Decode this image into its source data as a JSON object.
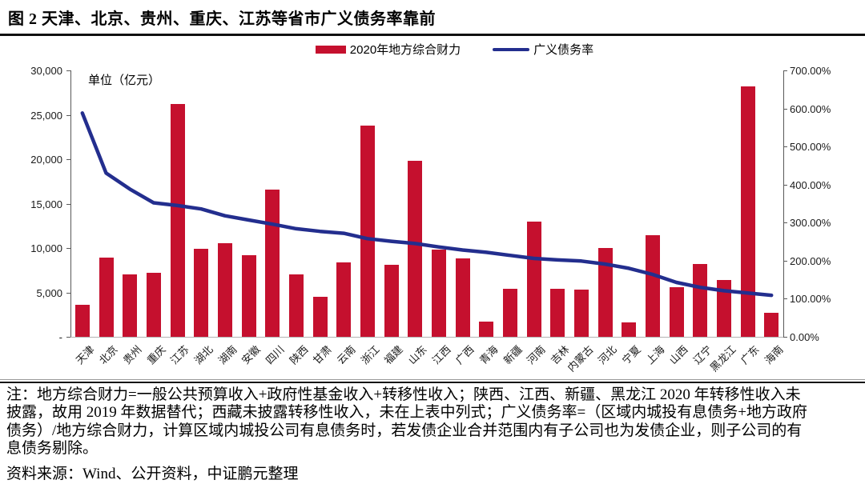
{
  "title": "图 2  天津、北京、贵州、重庆、江苏等省市广义债务率靠前",
  "legend": {
    "bar_label": "2020年地方综合财力",
    "line_label": "广义债务率"
  },
  "unit_label": "单位（亿元）",
  "colors": {
    "bar": "#C5102E",
    "line": "#232E8E",
    "axis": "#595959",
    "x_axis": "#b3b3b3",
    "text": "#000000"
  },
  "chart_data": {
    "type": "bar",
    "subtype": "bar+line combo, dual axis",
    "title": "图 2 天津、北京、贵州、重庆、江苏等省市广义债务率靠前",
    "categories": [
      "天津",
      "北京",
      "贵州",
      "重庆",
      "江苏",
      "湖北",
      "湖南",
      "安徽",
      "四川",
      "陕西",
      "甘肃",
      "云南",
      "浙江",
      "福建",
      "山东",
      "江西",
      "广西",
      "青海",
      "新疆",
      "河南",
      "吉林",
      "内蒙古",
      "河北",
      "宁夏",
      "上海",
      "山西",
      "辽宁",
      "黑龙江",
      "广东",
      "海南"
    ],
    "series": [
      {
        "name": "2020年地方综合财力",
        "type": "bar",
        "axis": "left",
        "unit": "亿元",
        "values": [
          3600,
          8900,
          7000,
          7200,
          26200,
          9900,
          10500,
          9200,
          16600,
          7000,
          4500,
          8400,
          23800,
          8100,
          19800,
          9800,
          8800,
          1700,
          5400,
          13000,
          5400,
          5300,
          10000,
          1600,
          11400,
          5600,
          8200,
          6400,
          28200,
          2700
        ]
      },
      {
        "name": "广义债务率",
        "type": "line",
        "axis": "right",
        "unit": "%",
        "values": [
          588,
          430,
          388,
          352,
          345,
          336,
          318,
          307,
          296,
          284,
          277,
          272,
          258,
          251,
          245,
          236,
          228,
          222,
          214,
          206,
          202,
          199,
          191,
          180,
          164,
          143,
          130,
          121,
          115,
          109
        ]
      }
    ],
    "left_axis": {
      "ticks": [
        "30,000",
        "25,000",
        "20,000",
        "15,000",
        "10,000",
        "5,000",
        "-"
      ],
      "max": 30000,
      "min": 0,
      "label": "单位（亿元）"
    },
    "right_axis": {
      "ticks": [
        "700.00%",
        "600.00%",
        "500.00%",
        "400.00%",
        "300.00%",
        "200.00%",
        "100.00%",
        "0.00%"
      ],
      "max": 700,
      "min": 0
    },
    "grid": false,
    "legend_position": "top"
  },
  "notes": {
    "lines": [
      "注：地方综合财力=一般公共预算收入+政府性基金收入+转移性收入；陕西、江西、新疆、黑龙江 2020 年转移性收入未",
      "披露，故用 2019 年数据替代；西藏未披露转移性收入，未在上表中列式；广义债务率=（区域内城投有息债务+地方政府",
      "债务）/地方综合财力，计算区域内城投公司有息债务时，若发债企业合并范围内有子公司也为发债企业，则子公司的有",
      "息债务剔除。"
    ],
    "source": "资料来源：Wind、公开资料，中证鹏元整理"
  }
}
